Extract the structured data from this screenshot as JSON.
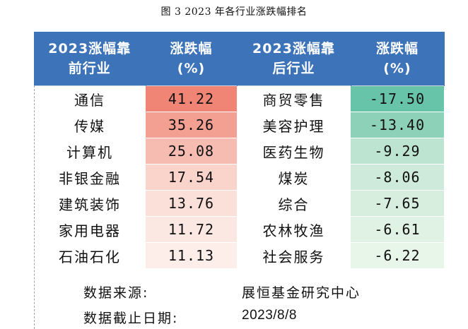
{
  "figure_title": "图 3   2023 年各行业涨跌幅排名",
  "table": {
    "headers": {
      "top_industry": [
        "2023涨幅靠",
        "前行业"
      ],
      "top_change": [
        "涨跌幅",
        "(%)"
      ],
      "bottom_industry": [
        "2023涨幅靠",
        "后行业"
      ],
      "bottom_change": [
        "涨跌幅",
        "(%)"
      ]
    },
    "rows": [
      {
        "top_industry": "通信",
        "top_change": "41.22",
        "bottom_industry": "商贸零售",
        "bottom_change": "-17.50"
      },
      {
        "top_industry": "传媒",
        "top_change": "35.26",
        "bottom_industry": "美容护理",
        "bottom_change": "-13.40"
      },
      {
        "top_industry": "计算机",
        "top_change": "25.08",
        "bottom_industry": "医药生物",
        "bottom_change": "-9.29"
      },
      {
        "top_industry": "非银金融",
        "top_change": "17.54",
        "bottom_industry": "煤炭",
        "bottom_change": "-8.06"
      },
      {
        "top_industry": "建筑装饰",
        "top_change": "13.76",
        "bottom_industry": "综合",
        "bottom_change": "-7.65"
      },
      {
        "top_industry": "家用电器",
        "top_change": "11.72",
        "bottom_industry": "农林牧渔",
        "bottom_change": "-6.61"
      },
      {
        "top_industry": "石油石化",
        "top_change": "11.13",
        "bottom_industry": "社会服务",
        "bottom_change": "-6.22"
      }
    ],
    "top_change_colors": [
      "#f08576",
      "#f3a092",
      "#f7bcb1",
      "#fad3cb",
      "#fbdfd9",
      "#fce8e3",
      "#fdeeea"
    ],
    "bottom_change_colors": [
      "#67c4a8",
      "#8ed1b9",
      "#bde3d1",
      "#cdeadb",
      "#d7eedf",
      "#e0f2e4",
      "#e8f5e9"
    ],
    "header_color": "#3d73b8"
  },
  "footer": {
    "source_label": "数据来源:",
    "source_value": "展恒基金研究中心",
    "date_label": "数据截止日期:",
    "date_value": "2023/8/8"
  }
}
